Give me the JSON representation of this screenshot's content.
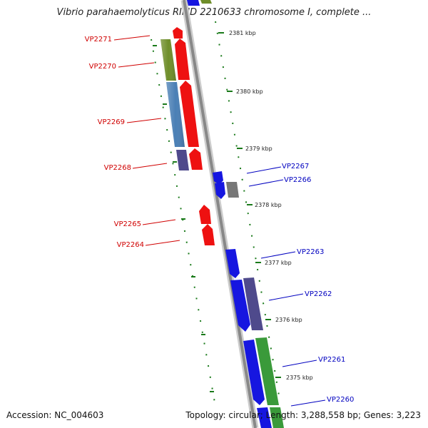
{
  "title": "Vibrio parahaemolyticus RIMD 2210633 chromosome I, complete ...",
  "accession_text": "Accession: NC_004603",
  "topology_text": "Topology: circular; Length: 3,288,558 bp; Genes: 3,223",
  "colors": {
    "forward_label": "#d00000",
    "reverse_label": "#0000c0",
    "red": "#ee1111",
    "blue": "#1616e0",
    "olive": "#6f8e2a",
    "steelblue": "#4a7fb5",
    "purple": "#4f4a8c",
    "green": "#3a9a3a",
    "gray": "#777777",
    "dotted": "#1a7a1a",
    "backbone": "#888888"
  },
  "ticks": [
    "2381 kbp",
    "2380 kbp",
    "2379 kbp",
    "2378 kbp",
    "2377 kbp",
    "2376 kbp",
    "2375 kbp"
  ],
  "left_genes": [
    "VP2271",
    "VP2270",
    "VP2269",
    "VP2268",
    "VP2265",
    "VP2264"
  ],
  "right_genes": [
    "VP2267",
    "VP2266",
    "VP2263",
    "VP2262",
    "VP2261",
    "VP2260"
  ]
}
